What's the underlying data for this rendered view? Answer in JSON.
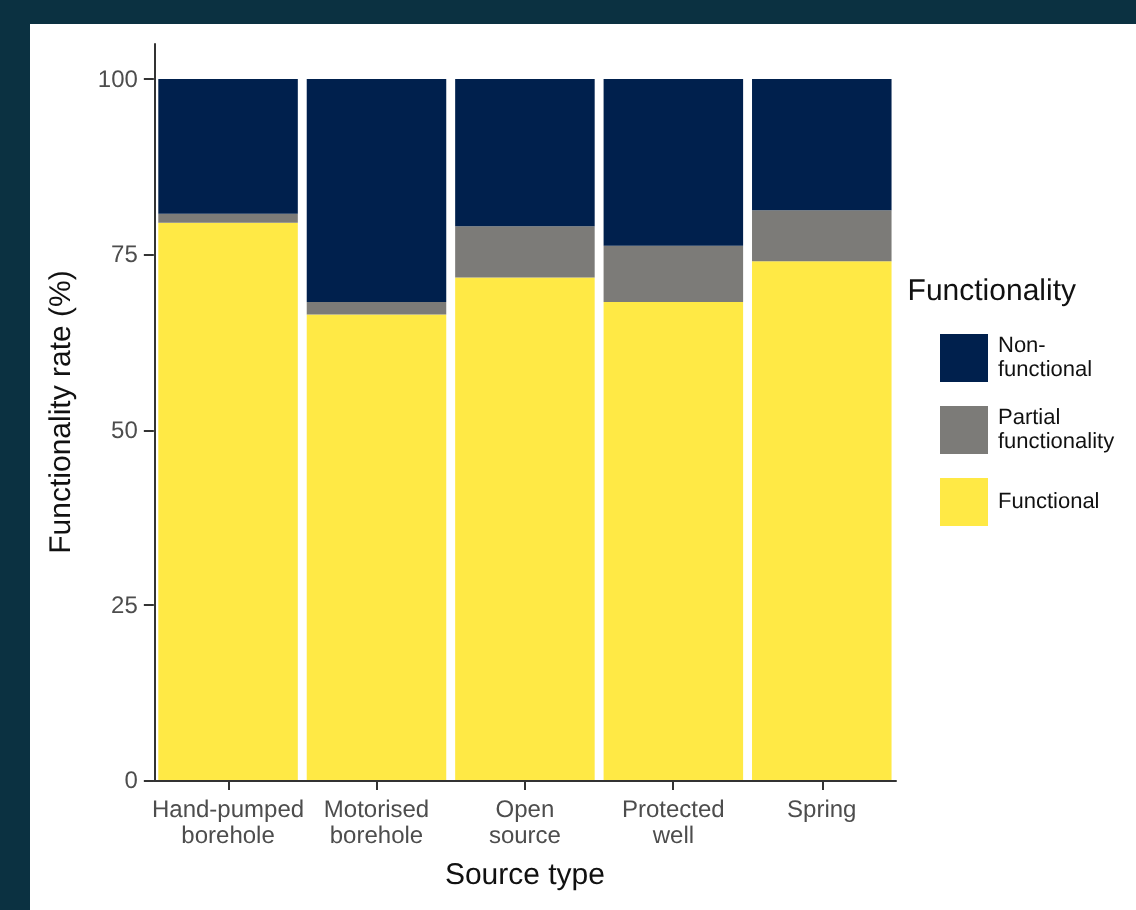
{
  "chart_data": {
    "type": "bar",
    "stacked": true,
    "xlabel": "Source type",
    "ylabel": "Functionality rate (%)",
    "legend_title": "Functionality",
    "legend": "right",
    "categories": [
      "Hand-pumped\nborehole",
      "Motorised\nborehole",
      "Open\nsource",
      "Protected\nwell",
      "Spring"
    ],
    "series": [
      {
        "name": "Functional",
        "color": "#ffe945",
        "values": [
          79.5,
          66.4,
          71.7,
          68.2,
          74.0
        ]
      },
      {
        "name": "Partial\nfunctionality",
        "color": "#7c7b78",
        "values": [
          1.3,
          1.8,
          7.3,
          8.0,
          7.3
        ]
      },
      {
        "name": "Non-\nfunctional",
        "color": "#00204d",
        "values": [
          19.2,
          31.8,
          21.0,
          23.8,
          18.7
        ]
      }
    ],
    "ylim": [
      0,
      105
    ],
    "yticks": [
      0,
      25,
      50,
      75,
      100
    ],
    "grid": false
  }
}
